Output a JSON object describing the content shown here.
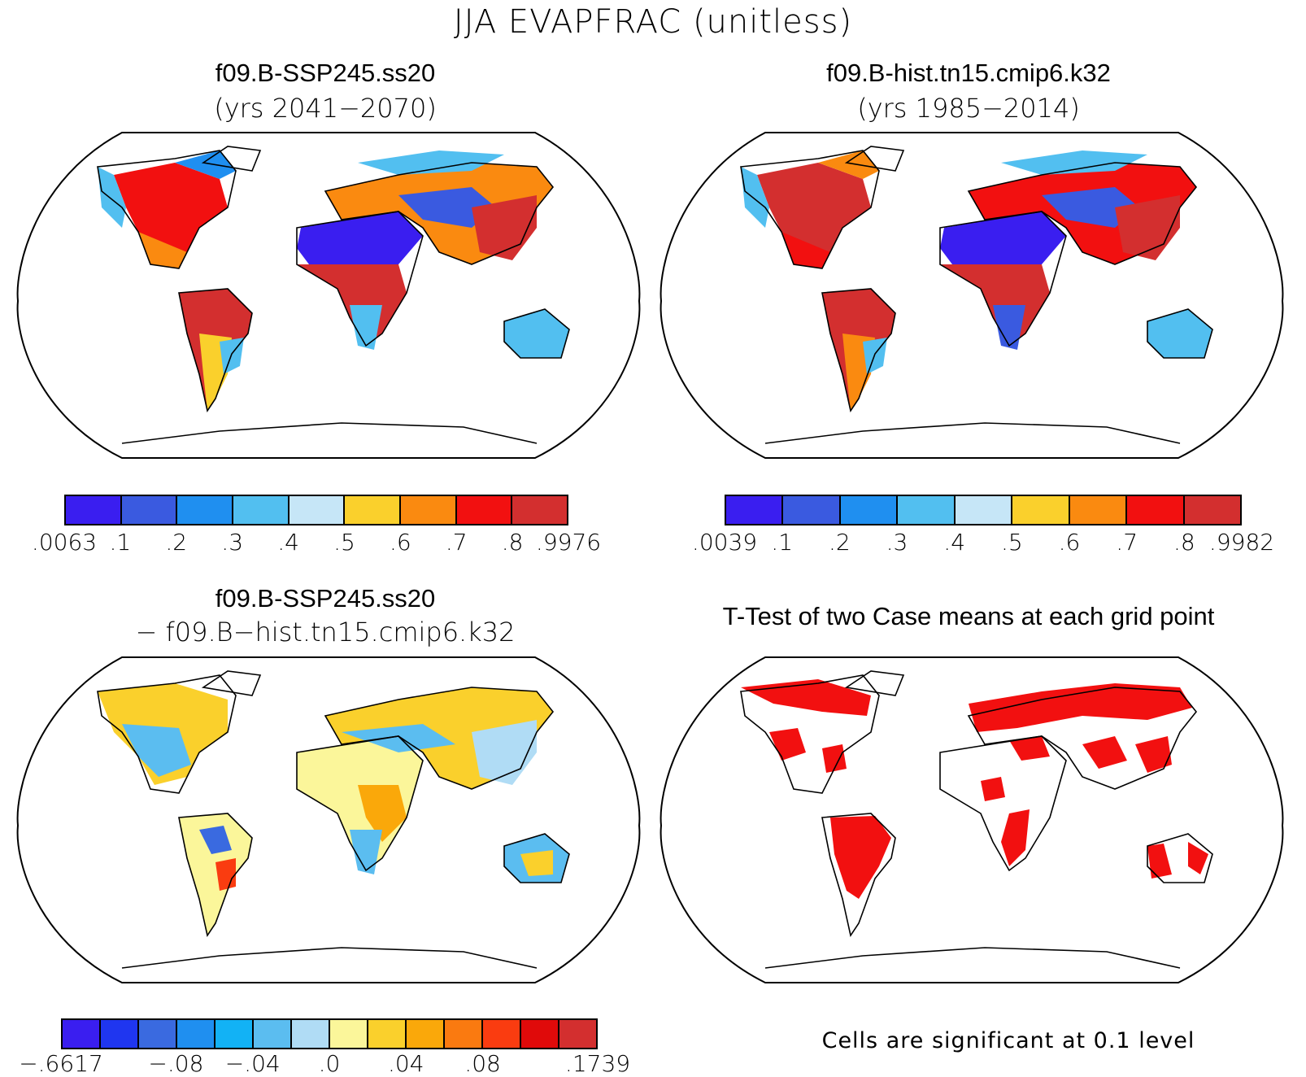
{
  "figure": {
    "title": "JJA EVAPFRAC (unitless)"
  },
  "panels": [
    {
      "title": "f09.B-SSP245.ss20",
      "subtitle": "(yrs 2041−2070)",
      "colorbar": {
        "colors": [
          "#3a1ef0",
          "#3a5ae0",
          "#1f8ff0",
          "#52bff0",
          "#c6e6f7",
          "#fad02c",
          "#fa8a10",
          "#f21010",
          "#d32f2f"
        ],
        "labels": [
          ".0063",
          ".1",
          ".2",
          ".3",
          ".4",
          ".5",
          ".6",
          ".7",
          ".8",
          ".9976"
        ]
      }
    },
    {
      "title": "f09.B-hist.tn15.cmip6.k32",
      "subtitle": "(yrs 1985−2014)",
      "colorbar": {
        "colors": [
          "#3a1ef0",
          "#3a5ae0",
          "#1f8ff0",
          "#52bff0",
          "#c6e6f7",
          "#fad02c",
          "#fa8a10",
          "#f21010",
          "#d32f2f"
        ],
        "labels": [
          ".0039",
          ".1",
          ".2",
          ".3",
          ".4",
          ".5",
          ".6",
          ".7",
          ".8",
          ".9982"
        ]
      }
    },
    {
      "title": "f09.B-SSP245.ss20",
      "subtitle": "− f09.B−hist.tn15.cmip6.k32",
      "colorbar": {
        "colors": [
          "#3a1ef0",
          "#1f36f0",
          "#3a6ae0",
          "#1f8ff0",
          "#12b2f5",
          "#5bbdf0",
          "#b0dcf5",
          "#fbf69a",
          "#fad02c",
          "#faa80a",
          "#fa7a10",
          "#fa3c10",
          "#e00a0a",
          "#d32f2f"
        ],
        "labels": [
          "−.6617",
          "−.08",
          "−.04",
          ".0",
          ".04",
          ".08",
          ".1739"
        ],
        "label_slots": [
          0,
          3,
          5,
          7,
          9,
          11,
          14
        ]
      }
    },
    {
      "title": "T-Test of two Case means at each grid point",
      "note": "Cells are significant at 0.1 level",
      "significant_color": "#f21010"
    }
  ]
}
